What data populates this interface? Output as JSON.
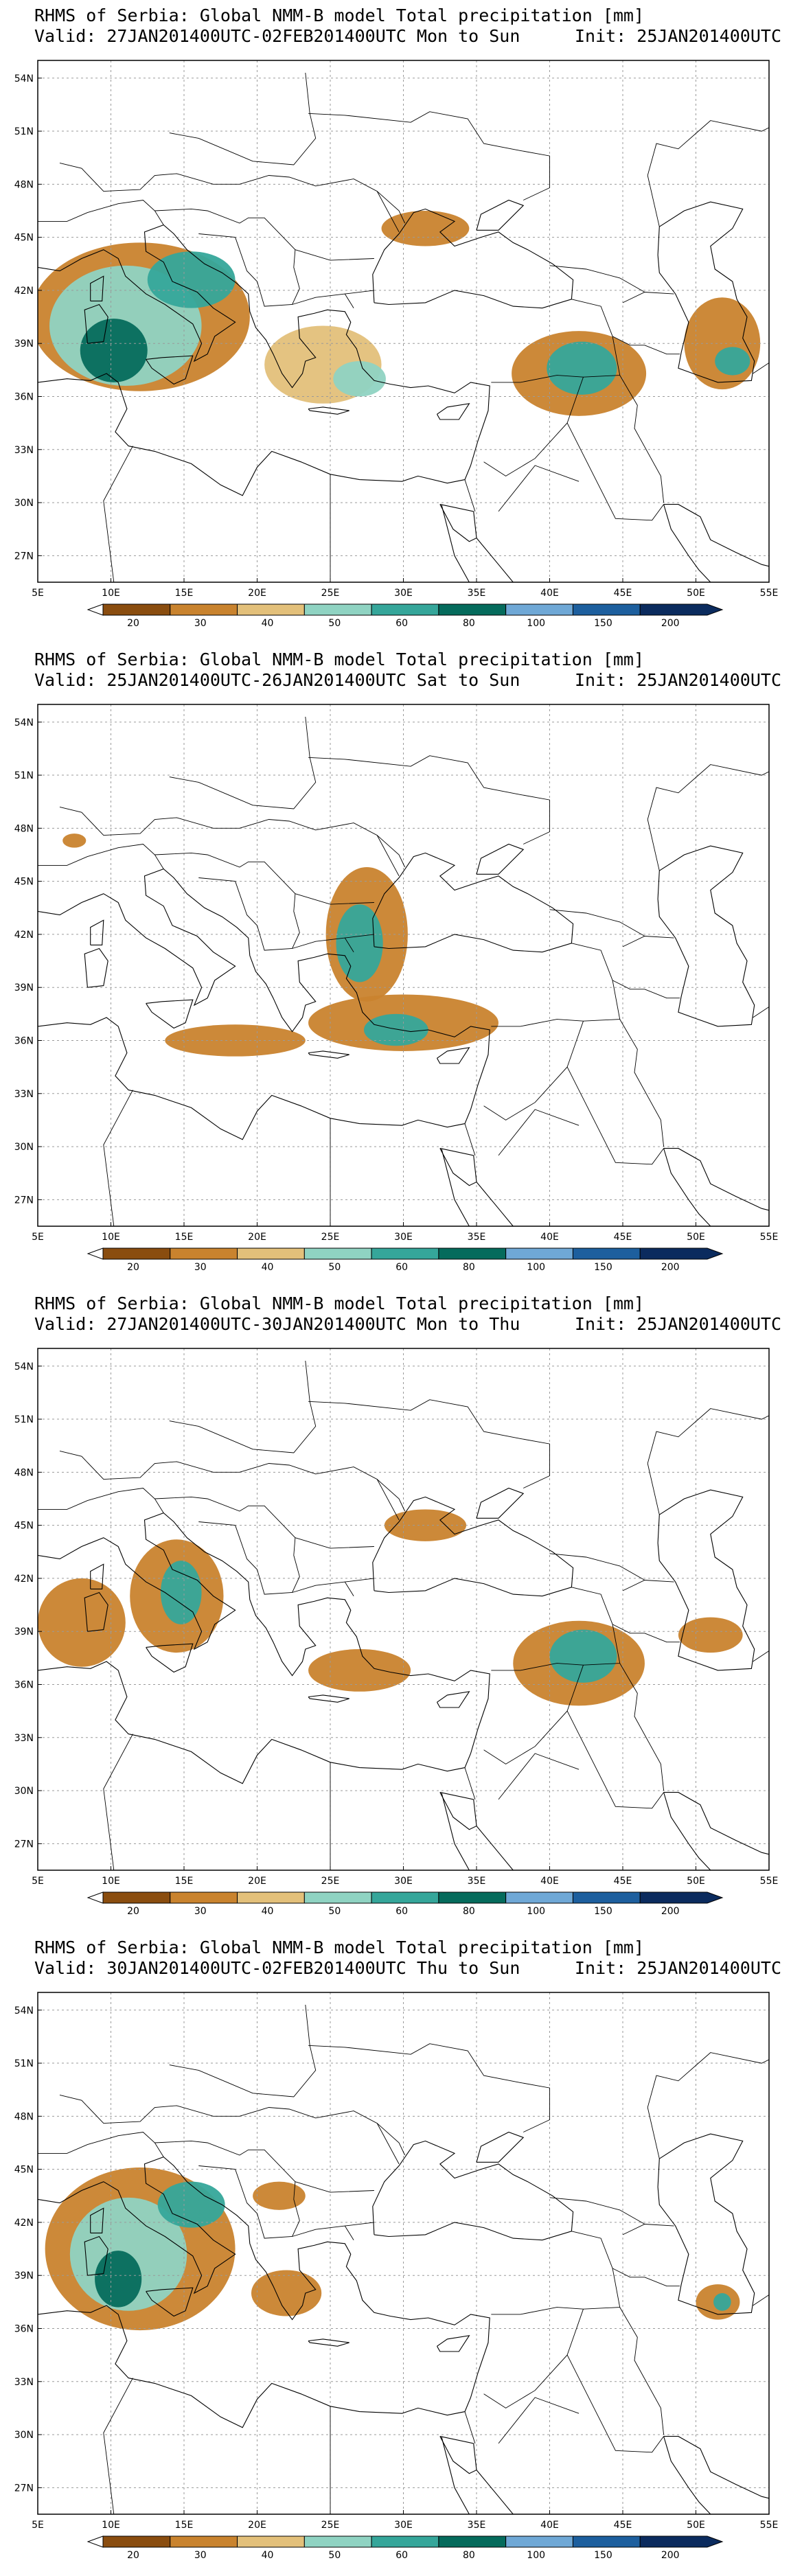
{
  "colors": {
    "levels": [
      "#8a4d0f",
      "#c9832e",
      "#e3c07a",
      "#8fd3c2",
      "#35a69a",
      "#056b5c",
      "#6fa8d6",
      "#1d5f9e",
      "#0b2b5e"
    ],
    "coast": "#000000",
    "grid": "#9a9a9a"
  },
  "colorbar": {
    "labels": [
      "20",
      "30",
      "40",
      "50",
      "60",
      "80",
      "100",
      "150",
      "200"
    ]
  },
  "axes": {
    "lat_labels": [
      "54N",
      "51N",
      "48N",
      "45N",
      "42N",
      "39N",
      "36N",
      "33N",
      "30N",
      "27N"
    ],
    "lon_labels": [
      "5E",
      "10E",
      "15E",
      "20E",
      "25E",
      "30E",
      "35E",
      "40E",
      "45E",
      "50E",
      "55E"
    ]
  },
  "panels": [
    {
      "title": "RHMS of Serbia: Global NMM-B model Total precipitation [mm]",
      "valid": "Valid: 27JAN201400UTC-02FEB201400UTC Mon to Sun",
      "init": "Init: 25JAN201400UTC",
      "areas": [
        {
          "lon": 12.0,
          "lat": 40.5,
          "rx": 7.5,
          "ry": 4.2,
          "level": 1
        },
        {
          "lon": 11.0,
          "lat": 40.0,
          "rx": 5.2,
          "ry": 3.4,
          "level": 3
        },
        {
          "lon": 10.2,
          "lat": 38.6,
          "rx": 2.3,
          "ry": 1.8,
          "level": 5
        },
        {
          "lon": 15.5,
          "lat": 42.6,
          "rx": 3.0,
          "ry": 1.6,
          "level": 4
        },
        {
          "lon": 24.5,
          "lat": 37.8,
          "rx": 4.0,
          "ry": 2.2,
          "level": 2
        },
        {
          "lon": 27.0,
          "lat": 37.0,
          "rx": 1.8,
          "ry": 1.0,
          "level": 3
        },
        {
          "lon": 31.5,
          "lat": 45.5,
          "rx": 3.0,
          "ry": 1.0,
          "level": 1
        },
        {
          "lon": 42.0,
          "lat": 37.3,
          "rx": 4.6,
          "ry": 2.4,
          "level": 1
        },
        {
          "lon": 42.2,
          "lat": 37.6,
          "rx": 2.4,
          "ry": 1.5,
          "level": 4
        },
        {
          "lon": 51.8,
          "lat": 39.0,
          "rx": 2.6,
          "ry": 2.6,
          "level": 1
        },
        {
          "lon": 52.5,
          "lat": 38.0,
          "rx": 1.2,
          "ry": 0.8,
          "level": 4
        }
      ]
    },
    {
      "title": "RHMS of Serbia: Global NMM-B model Total precipitation [mm]",
      "valid": "Valid: 25JAN201400UTC-26JAN201400UTC Sat to Sun",
      "init": "Init: 25JAN201400UTC",
      "areas": [
        {
          "lon": 27.5,
          "lat": 42.0,
          "rx": 2.8,
          "ry": 3.8,
          "level": 1
        },
        {
          "lon": 27.0,
          "lat": 41.5,
          "rx": 1.6,
          "ry": 2.2,
          "level": 4
        },
        {
          "lon": 30.0,
          "lat": 37.0,
          "rx": 6.5,
          "ry": 1.6,
          "level": 1
        },
        {
          "lon": 29.5,
          "lat": 36.6,
          "rx": 2.2,
          "ry": 0.9,
          "level": 4
        },
        {
          "lon": 18.5,
          "lat": 36.0,
          "rx": 4.8,
          "ry": 0.9,
          "level": 1
        },
        {
          "lon": 7.5,
          "lat": 47.3,
          "rx": 0.8,
          "ry": 0.4,
          "level": 1
        }
      ]
    },
    {
      "title": "RHMS of Serbia: Global NMM-B model Total precipitation [mm]",
      "valid": "Valid: 27JAN201400UTC-30JAN201400UTC Mon to Thu",
      "init": "Init: 25JAN201400UTC",
      "areas": [
        {
          "lon": 8.0,
          "lat": 39.5,
          "rx": 3.0,
          "ry": 2.5,
          "level": 1
        },
        {
          "lon": 14.5,
          "lat": 41.0,
          "rx": 3.2,
          "ry": 3.2,
          "level": 1
        },
        {
          "lon": 14.8,
          "lat": 41.2,
          "rx": 1.4,
          "ry": 1.8,
          "level": 4
        },
        {
          "lon": 27.0,
          "lat": 36.8,
          "rx": 3.5,
          "ry": 1.2,
          "level": 1
        },
        {
          "lon": 31.5,
          "lat": 45.0,
          "rx": 2.8,
          "ry": 0.9,
          "level": 1
        },
        {
          "lon": 42.0,
          "lat": 37.2,
          "rx": 4.5,
          "ry": 2.4,
          "level": 1
        },
        {
          "lon": 42.3,
          "lat": 37.6,
          "rx": 2.3,
          "ry": 1.5,
          "level": 4
        },
        {
          "lon": 51.0,
          "lat": 38.8,
          "rx": 2.2,
          "ry": 1.0,
          "level": 1
        }
      ]
    },
    {
      "title": "RHMS of Serbia: Global NMM-B model Total precipitation [mm]",
      "valid": "Valid: 30JAN201400UTC-02FEB201400UTC Thu to Sun",
      "init": "Init: 25JAN201400UTC",
      "areas": [
        {
          "lon": 12.0,
          "lat": 40.5,
          "rx": 6.5,
          "ry": 4.6,
          "level": 1
        },
        {
          "lon": 11.2,
          "lat": 40.2,
          "rx": 4.0,
          "ry": 3.2,
          "level": 3
        },
        {
          "lon": 10.5,
          "lat": 38.8,
          "rx": 1.6,
          "ry": 1.6,
          "level": 5
        },
        {
          "lon": 15.5,
          "lat": 43.0,
          "rx": 2.3,
          "ry": 1.3,
          "level": 4
        },
        {
          "lon": 22.0,
          "lat": 38.0,
          "rx": 2.4,
          "ry": 1.3,
          "level": 1
        },
        {
          "lon": 21.5,
          "lat": 43.5,
          "rx": 1.8,
          "ry": 0.8,
          "level": 1
        },
        {
          "lon": 51.5,
          "lat": 37.5,
          "rx": 1.5,
          "ry": 1.0,
          "level": 1
        },
        {
          "lon": 51.8,
          "lat": 37.5,
          "rx": 0.6,
          "ry": 0.5,
          "level": 4
        }
      ]
    }
  ]
}
